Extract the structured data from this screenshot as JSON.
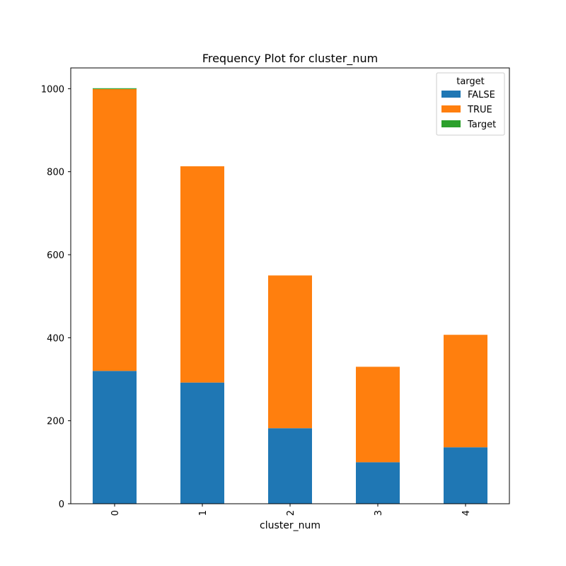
{
  "chart_data": {
    "type": "bar",
    "stacked": true,
    "title": "Frequency Plot for cluster_num",
    "xlabel": "cluster_num",
    "ylabel": "",
    "categories": [
      "0",
      "1",
      "2",
      "3",
      "4"
    ],
    "series": [
      {
        "name": "FALSE",
        "color": "#1f77b4",
        "values": [
          320,
          292,
          182,
          100,
          136
        ]
      },
      {
        "name": "TRUE",
        "color": "#ff7f0e",
        "values": [
          679,
          521,
          368,
          230,
          271
        ]
      },
      {
        "name": "Target",
        "color": "#2ca02c",
        "values": [
          2,
          0,
          0,
          0,
          0
        ]
      }
    ],
    "ylim": [
      0,
      1050
    ],
    "yticks": [
      0,
      200,
      400,
      600,
      800,
      1000
    ],
    "grid": false,
    "legend": {
      "title": "target",
      "placement": "top-right"
    }
  }
}
